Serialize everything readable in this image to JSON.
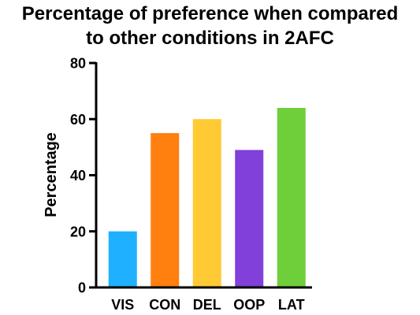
{
  "title_line1": "Percentage of preference when compared",
  "title_line2": "to other conditions in 2AFC",
  "chart_data": {
    "type": "bar",
    "title": "Percentage of preference when compared to other conditions in 2AFC",
    "xlabel": "",
    "ylabel": "Percentage",
    "ylim": [
      0,
      80
    ],
    "yticks": [
      0,
      20,
      40,
      60,
      80
    ],
    "grid": false,
    "legend": "none",
    "categories": [
      "VIS",
      "CON",
      "DEL",
      "OOP",
      "LAT"
    ],
    "values": [
      20,
      55,
      60,
      49,
      64
    ],
    "colors": [
      "#1FB1FF",
      "#FF7F0F",
      "#FFCA33",
      "#8040D9",
      "#6FCF3A"
    ]
  }
}
